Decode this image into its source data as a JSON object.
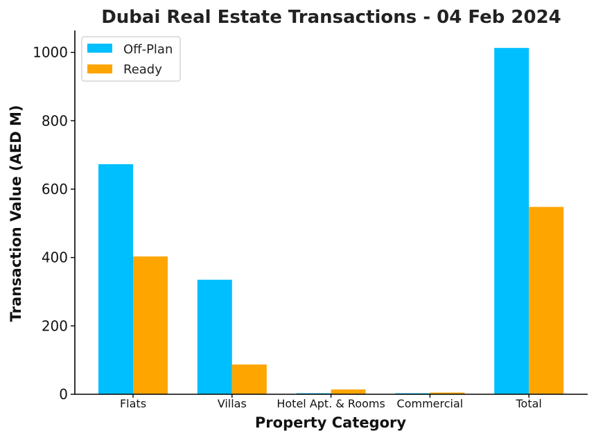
{
  "chart_data": {
    "type": "bar",
    "title": "Dubai Real Estate Transactions - 04 Feb 2024",
    "xlabel": "Property Category",
    "ylabel": "Transaction Value (AED M)",
    "categories": [
      "Flats",
      "Villas",
      "Hotel Apt. & Rooms",
      "Commercial",
      "Total"
    ],
    "series": [
      {
        "name": "Off-Plan",
        "color": "#00BFFF",
        "values": [
          673,
          335,
          3,
          3,
          1013
        ]
      },
      {
        "name": "Ready",
        "color": "#FFA500",
        "values": [
          403,
          87,
          14,
          5,
          548
        ]
      }
    ],
    "ylim": [
      0,
      1064
    ],
    "yticks": [
      0,
      200,
      400,
      600,
      800,
      1000
    ],
    "grid": false,
    "legend": "top-left"
  }
}
